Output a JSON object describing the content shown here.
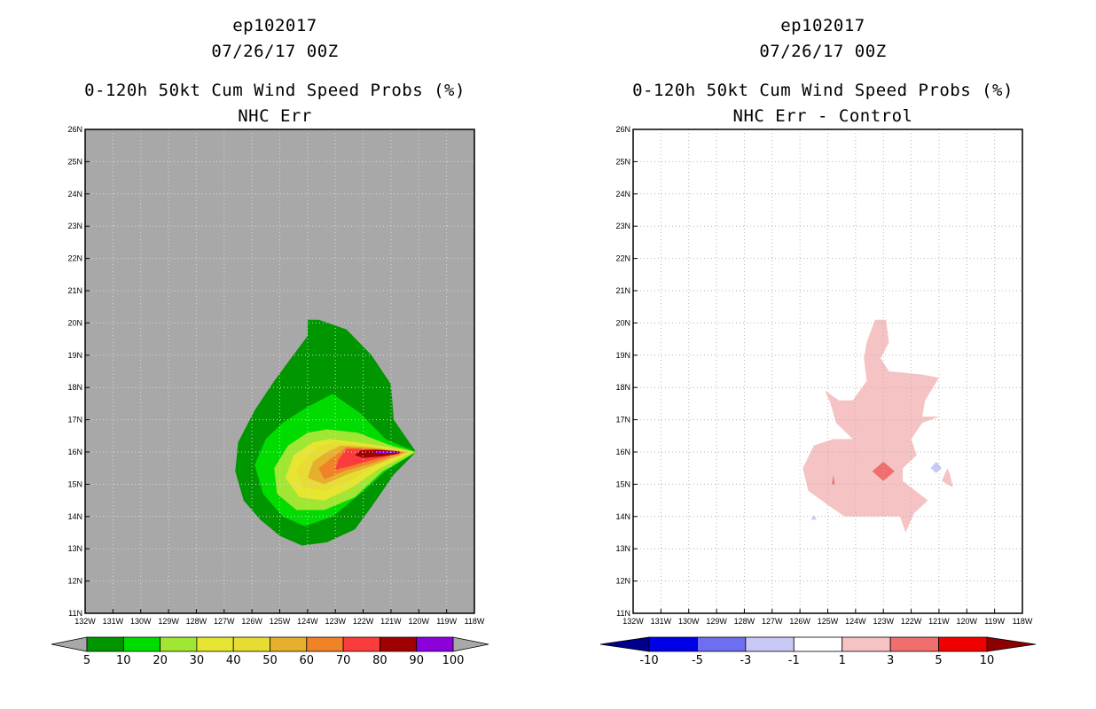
{
  "chart_data": [
    {
      "type": "heatmap",
      "storm_id": "ep102017",
      "datetime": "07/26/17 00Z",
      "title": "0-120h 50kt Cum Wind Speed Probs (%)",
      "subtitle": "NHC Err",
      "xlabel": "",
      "ylabel": "",
      "x_ticks": [
        "132W",
        "131W",
        "130W",
        "129W",
        "128W",
        "127W",
        "126W",
        "125W",
        "124W",
        "123W",
        "122W",
        "121W",
        "120W",
        "119W",
        "118W"
      ],
      "y_ticks": [
        "11N",
        "12N",
        "13N",
        "14N",
        "15N",
        "16N",
        "17N",
        "18N",
        "19N",
        "20N",
        "21N",
        "22N",
        "23N",
        "24N",
        "25N",
        "26N"
      ],
      "xlim": [
        -132,
        -118
      ],
      "ylim": [
        11,
        26
      ],
      "grid": true,
      "background": "#a8a8a8",
      "colorbar": {
        "labels": [
          "5",
          "10",
          "20",
          "30",
          "40",
          "50",
          "60",
          "70",
          "80",
          "90",
          "100"
        ],
        "colors": [
          "#009600",
          "#00dc00",
          "#a0e632",
          "#e6e632",
          "#e6dc32",
          "#e6af2d",
          "#f08228",
          "#fa3c3c",
          "#a00000",
          "#8c00dc"
        ],
        "low_arrow_color": "#a8a8a8",
        "high_arrow_color": "#a8a8a8"
      },
      "contours": [
        {
          "level": 5,
          "color": "#009600",
          "points": [
            [
              -123.6,
              20.1
            ],
            [
              -122.6,
              19.8
            ],
            [
              -121.7,
              19.0
            ],
            [
              -121.0,
              18.1
            ],
            [
              -120.9,
              17.0
            ],
            [
              -120.1,
              16.0
            ],
            [
              -120.9,
              15.3
            ],
            [
              -121.7,
              14.3
            ],
            [
              -122.3,
              13.6
            ],
            [
              -123.3,
              13.2
            ],
            [
              -124.2,
              13.1
            ],
            [
              -125.0,
              13.4
            ],
            [
              -125.7,
              13.9
            ],
            [
              -126.3,
              14.5
            ],
            [
              -126.6,
              15.4
            ],
            [
              -126.5,
              16.3
            ],
            [
              -125.9,
              17.3
            ],
            [
              -125.2,
              18.2
            ],
            [
              -124.6,
              18.9
            ],
            [
              -124.0,
              19.6
            ],
            [
              -124.0,
              20.1
            ]
          ]
        },
        {
          "level": 10,
          "color": "#00dc00",
          "points": [
            [
              -123.1,
              17.8
            ],
            [
              -122.1,
              17.2
            ],
            [
              -121.2,
              16.4
            ],
            [
              -120.1,
              16.0
            ],
            [
              -121.2,
              15.4
            ],
            [
              -122.1,
              14.7
            ],
            [
              -123.1,
              14.0
            ],
            [
              -124.1,
              13.7
            ],
            [
              -124.9,
              14.0
            ],
            [
              -125.6,
              14.7
            ],
            [
              -125.9,
              15.6
            ],
            [
              -125.5,
              16.4
            ],
            [
              -124.9,
              16.9
            ],
            [
              -124.0,
              17.4
            ]
          ]
        },
        {
          "level": 20,
          "color": "#a0e632",
          "points": [
            [
              -123.3,
              16.7
            ],
            [
              -122.2,
              16.6
            ],
            [
              -121.0,
              16.2
            ],
            [
              -120.1,
              16.0
            ],
            [
              -121.3,
              15.4
            ],
            [
              -122.3,
              14.6
            ],
            [
              -123.4,
              14.2
            ],
            [
              -124.4,
              14.2
            ],
            [
              -125.1,
              14.7
            ],
            [
              -125.2,
              15.5
            ],
            [
              -124.7,
              16.2
            ],
            [
              -124.0,
              16.6
            ]
          ]
        },
        {
          "level": 30,
          "color": "#e6e632",
          "points": [
            [
              -123.2,
              16.4
            ],
            [
              -122.2,
              16.3
            ],
            [
              -121.1,
              16.15
            ],
            [
              -120.2,
              16.0
            ],
            [
              -121.4,
              15.5
            ],
            [
              -122.4,
              14.9
            ],
            [
              -123.4,
              14.5
            ],
            [
              -124.3,
              14.6
            ],
            [
              -124.8,
              15.2
            ],
            [
              -124.5,
              15.9
            ],
            [
              -123.8,
              16.3
            ]
          ]
        },
        {
          "level": 40,
          "color": "#e6dc32",
          "points": [
            [
              -123.0,
              16.3
            ],
            [
              -122.0,
              16.2
            ],
            [
              -121.0,
              16.1
            ],
            [
              -120.3,
              16.0
            ],
            [
              -121.5,
              15.6
            ],
            [
              -122.5,
              15.1
            ],
            [
              -123.4,
              14.8
            ],
            [
              -124.2,
              14.9
            ],
            [
              -124.4,
              15.4
            ],
            [
              -124.0,
              15.9
            ],
            [
              -123.5,
              16.2
            ]
          ]
        },
        {
          "level": 50,
          "color": "#e6af2d",
          "points": [
            [
              -122.8,
              16.2
            ],
            [
              -121.8,
              16.15
            ],
            [
              -120.9,
              16.05
            ],
            [
              -120.4,
              16.0
            ],
            [
              -121.6,
              15.6
            ],
            [
              -122.6,
              15.3
            ],
            [
              -123.4,
              15.0
            ],
            [
              -124.0,
              15.2
            ],
            [
              -123.8,
              15.7
            ],
            [
              -123.3,
              16.0
            ]
          ]
        },
        {
          "level": 60,
          "color": "#f08228",
          "points": [
            [
              -122.6,
              16.15
            ],
            [
              -121.6,
              16.1
            ],
            [
              -120.8,
              16.02
            ],
            [
              -120.5,
              16.0
            ],
            [
              -121.7,
              15.65
            ],
            [
              -122.7,
              15.4
            ],
            [
              -123.4,
              15.15
            ],
            [
              -123.6,
              15.5
            ],
            [
              -123.0,
              15.9
            ]
          ]
        },
        {
          "level": 70,
          "color": "#fa3c3c",
          "points": [
            [
              -122.6,
              16.1
            ],
            [
              -121.6,
              16.08
            ],
            [
              -120.8,
              16.02
            ],
            [
              -120.6,
              15.98
            ],
            [
              -121.7,
              15.75
            ],
            [
              -122.5,
              15.55
            ],
            [
              -123.0,
              15.45
            ],
            [
              -122.9,
              15.75
            ]
          ]
        },
        {
          "level": 80,
          "color": "#a00000",
          "points": [
            [
              -122.1,
              16.05
            ],
            [
              -121.4,
              16.07
            ],
            [
              -120.7,
              16.02
            ],
            [
              -120.7,
              15.95
            ],
            [
              -121.3,
              15.87
            ],
            [
              -122.0,
              15.82
            ],
            [
              -122.3,
              15.9
            ]
          ]
        },
        {
          "level": 90,
          "color": "#8c00dc",
          "points": [
            [
              -121.5,
              16.03
            ],
            [
              -120.9,
              16.03
            ],
            [
              -120.75,
              15.98
            ],
            [
              -121.2,
              15.95
            ],
            [
              -121.6,
              15.96
            ]
          ]
        }
      ]
    },
    {
      "type": "heatmap",
      "storm_id": "ep102017",
      "datetime": "07/26/17 00Z",
      "title": "0-120h 50kt Cum Wind Speed Probs (%)",
      "subtitle": "NHC Err - Control",
      "xlabel": "",
      "ylabel": "",
      "x_ticks": [
        "132W",
        "131W",
        "130W",
        "129W",
        "128W",
        "127W",
        "126W",
        "125W",
        "124W",
        "123W",
        "122W",
        "121W",
        "120W",
        "119W",
        "118W"
      ],
      "y_ticks": [
        "11N",
        "12N",
        "13N",
        "14N",
        "15N",
        "16N",
        "17N",
        "18N",
        "19N",
        "20N",
        "21N",
        "22N",
        "23N",
        "24N",
        "25N",
        "26N"
      ],
      "xlim": [
        -132,
        -118
      ],
      "ylim": [
        11,
        26
      ],
      "grid": true,
      "background": "#ffffff",
      "colorbar": {
        "labels": [
          "-10",
          "-5",
          "-3",
          "-1",
          "1",
          "3",
          "5",
          "10"
        ],
        "colors": [
          "#0000e6",
          "#6e6ef0",
          "#c8c8f5",
          "#ffffff",
          "#f5c3c3",
          "#f06e6e",
          "#f00000"
        ],
        "low_arrow_color": "#00008c",
        "high_arrow_color": "#8c0000"
      },
      "contours": [
        {
          "level": 1,
          "color": "#f5c3c3",
          "points": [
            [
              -123.3,
              20.1
            ],
            [
              -122.9,
              20.1
            ],
            [
              -122.8,
              19.4
            ],
            [
              -123.1,
              18.9
            ],
            [
              -122.8,
              18.5
            ],
            [
              -121.6,
              18.4
            ],
            [
              -121.0,
              18.3
            ],
            [
              -121.5,
              17.6
            ],
            [
              -121.6,
              17.1
            ],
            [
              -121.0,
              17.1
            ],
            [
              -121.6,
              16.9
            ],
            [
              -122.0,
              16.4
            ],
            [
              -121.8,
              15.9
            ],
            [
              -122.3,
              15.5
            ],
            [
              -122.3,
              15.1
            ],
            [
              -121.4,
              14.5
            ],
            [
              -121.9,
              14.1
            ],
            [
              -122.2,
              13.5
            ],
            [
              -122.4,
              14.0
            ],
            [
              -123.5,
              14.0
            ],
            [
              -124.4,
              14.0
            ],
            [
              -124.9,
              14.3
            ],
            [
              -125.7,
              14.8
            ],
            [
              -125.9,
              15.5
            ],
            [
              -125.5,
              16.2
            ],
            [
              -124.8,
              16.4
            ],
            [
              -124.1,
              16.4
            ],
            [
              -124.7,
              16.9
            ],
            [
              -124.9,
              17.5
            ],
            [
              -125.1,
              17.9
            ],
            [
              -124.6,
              17.6
            ],
            [
              -124.1,
              17.6
            ],
            [
              -123.6,
              18.2
            ],
            [
              -123.7,
              18.9
            ],
            [
              -123.6,
              19.4
            ]
          ]
        },
        {
          "level": 1,
          "color": "#f5c3c3",
          "points": [
            [
              -120.7,
              15.5
            ],
            [
              -120.9,
              15.1
            ],
            [
              -120.5,
              14.9
            ],
            [
              -120.6,
              15.3
            ]
          ]
        },
        {
          "level": 3,
          "color": "#f06e6e",
          "points": [
            [
              -123.0,
              15.7
            ],
            [
              -122.6,
              15.4
            ],
            [
              -123.0,
              15.1
            ],
            [
              -123.4,
              15.4
            ]
          ]
        },
        {
          "level": 3,
          "color": "#f06e6e",
          "points": [
            [
              -124.8,
              15.3
            ],
            [
              -124.75,
              15.0
            ],
            [
              -124.85,
              15.0
            ]
          ]
        },
        {
          "level": -1,
          "color": "#c8c8f5",
          "points": [
            [
              -121.1,
              15.7
            ],
            [
              -120.9,
              15.5
            ],
            [
              -121.1,
              15.35
            ],
            [
              -121.3,
              15.5
            ]
          ]
        },
        {
          "level": -1,
          "color": "#c8c8f5",
          "points": [
            [
              -125.5,
              14.05
            ],
            [
              -125.4,
              13.9
            ],
            [
              -125.6,
              13.9
            ]
          ]
        }
      ]
    }
  ]
}
